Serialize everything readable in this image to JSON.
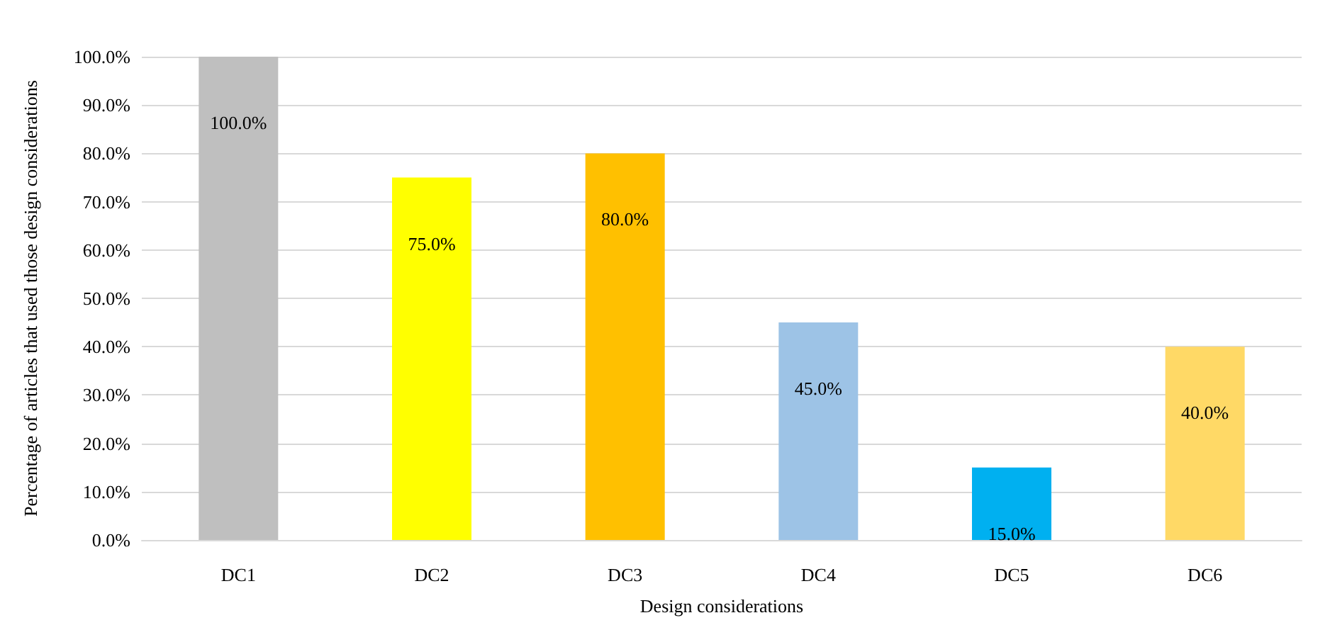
{
  "chart_data": {
    "type": "bar",
    "xlabel": "Design considerations",
    "ylabel": "Percentage of articles that used those design considerations",
    "categories": [
      "DC1",
      "DC2",
      "DC3",
      "DC4",
      "DC5",
      "DC6"
    ],
    "values": [
      100,
      75,
      80,
      45,
      15,
      40
    ],
    "colors": [
      "#bfbfbf",
      "#ffff00",
      "#ffc000",
      "#9dc3e6",
      "#00b0f0",
      "#ffd966"
    ],
    "value_labels": [
      "100.0%",
      "75.0%",
      "80.0%",
      "45.0%",
      "15.0%",
      "40.0%"
    ],
    "ylim": [
      0,
      100
    ],
    "yticks": [
      {
        "value": 0,
        "label": "0.0%"
      },
      {
        "value": 10,
        "label": "10.0%"
      },
      {
        "value": 20,
        "label": "20.0%"
      },
      {
        "value": 30,
        "label": "30.0%"
      },
      {
        "value": 40,
        "label": "40.0%"
      },
      {
        "value": 50,
        "label": "50.0%"
      },
      {
        "value": 60,
        "label": "60.0%"
      },
      {
        "value": 70,
        "label": "70.0%"
      },
      {
        "value": 80,
        "label": "80.0%"
      },
      {
        "value": 90,
        "label": "90.0%"
      },
      {
        "value": 100,
        "label": "100.0%"
      }
    ],
    "grid": "y"
  }
}
